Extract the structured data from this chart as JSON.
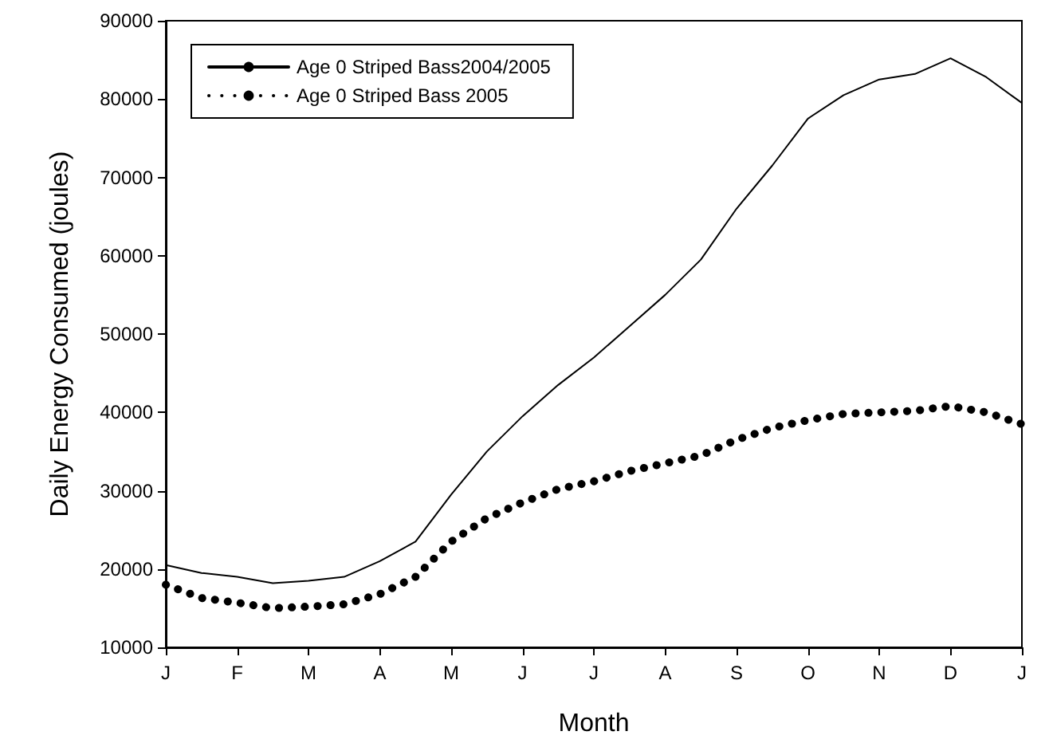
{
  "chart_data": {
    "type": "line",
    "xlabel": "Month",
    "ylabel": "Daily Energy Consumed (joules)",
    "categories": [
      "J",
      null,
      "F",
      null,
      "M",
      null,
      "A",
      null,
      "M",
      null,
      "J",
      null,
      "J",
      null,
      "A",
      null,
      "S",
      null,
      "O",
      null,
      "N",
      null,
      "D",
      null,
      "J"
    ],
    "ylim": [
      10000,
      90000
    ],
    "yticks": [
      10000,
      20000,
      30000,
      40000,
      50000,
      60000,
      70000,
      80000,
      90000
    ],
    "grid": false,
    "legend": "top left",
    "marker": "none",
    "series": [
      {
        "name": "Age 0 Striped Bass2004/2005",
        "color": "#000000",
        "line_style": "solid",
        "values": [
          20500,
          19500,
          19000,
          18200,
          18500,
          19000,
          21000,
          23500,
          29500,
          35000,
          39500,
          43500,
          47000,
          51000,
          55000,
          59500,
          66000,
          71500,
          77500,
          80500,
          82500,
          83200,
          85200,
          82800,
          79500
        ]
      },
      {
        "name": "Age 0 Striped Bass 2005",
        "color": "#000000",
        "line_style": "dotted",
        "values": [
          18000,
          16300,
          15700,
          15000,
          15200,
          15500,
          16800,
          19000,
          23500,
          26500,
          28500,
          30200,
          31200,
          32500,
          33500,
          34500,
          36500,
          38000,
          39000,
          39800,
          40000,
          40200,
          40800,
          40000,
          38500
        ]
      }
    ]
  }
}
